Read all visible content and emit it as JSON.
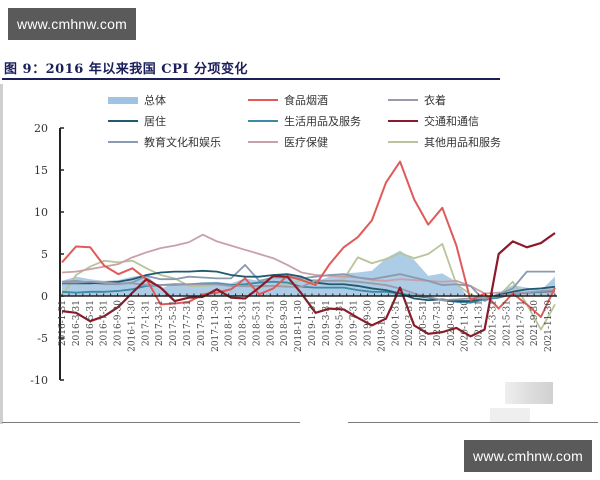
{
  "watermark": {
    "top": "www.cmhnw.com",
    "bottom": "www.cmhnw.com"
  },
  "figure": {
    "title": "图 9：2016 年以来我国 CPI 分项变化"
  },
  "legend": [
    {
      "label": "总体",
      "color": "#9fc3e0",
      "style": "area"
    },
    {
      "label": "食品烟酒",
      "color": "#e05a5a",
      "style": "line"
    },
    {
      "label": "衣着",
      "color": "#9a9aaa",
      "style": "line"
    },
    {
      "label": "居住",
      "color": "#1f5a6e",
      "style": "line"
    },
    {
      "label": "生活用品及服务",
      "color": "#3a8aa8",
      "style": "line"
    },
    {
      "label": "交通和通信",
      "color": "#8b1a2a",
      "style": "line"
    },
    {
      "label": "教育文化和娱乐",
      "color": "#8a9ab0",
      "style": "line"
    },
    {
      "label": "医疗保健",
      "color": "#c9a0a8",
      "style": "line"
    },
    {
      "label": "其他用品和服务",
      "color": "#b8c49a",
      "style": "line"
    }
  ],
  "chart_data": {
    "type": "line",
    "title": "2016 年以来我国 CPI 分项变化",
    "xlabel": "",
    "ylabel": "",
    "ylim": [
      -10,
      20
    ],
    "yticks": [
      20,
      15,
      10,
      5,
      0,
      -5,
      -10
    ],
    "grid": false,
    "legend_position": "top",
    "x_tick_labels": [
      "2016-1-31",
      "2016-3-31",
      "2016-5-31",
      "2016-7-31",
      "2016-9-30",
      "2016-11-30",
      "2017-1-31",
      "2017-3-31",
      "2017-5-31",
      "2017-7-31",
      "2017-9-30",
      "2017-11-30",
      "2018-1-31",
      "2018-3-31",
      "2018-5-31",
      "2018-7-31",
      "2018-9-30",
      "2018-11-30",
      "2019-1-31",
      "2019-3-31",
      "2019-5-31",
      "2019-7-31",
      "2019-9-30",
      "2019-11-30",
      "2020-1-31",
      "2020-3-31",
      "2020-5-31",
      "2020-7-31",
      "2020-9-30",
      "2020-11-30",
      "2021-1-31",
      "2021-3-31",
      "2021-5-31",
      "2021-7-31",
      "2021-9-30",
      "2021-11-30"
    ],
    "series": [
      {
        "name": "总体",
        "values": [
          1.8,
          2.3,
          2.0,
          1.8,
          1.9,
          2.3,
          2.5,
          0.9,
          1.5,
          1.4,
          1.6,
          1.7,
          1.5,
          2.1,
          1.8,
          2.1,
          2.5,
          2.2,
          1.7,
          2.3,
          2.7,
          2.8,
          3.0,
          4.5,
          5.4,
          4.3,
          2.4,
          2.7,
          1.7,
          -0.5,
          -0.3,
          0.4,
          1.3,
          1.0,
          0.7,
          2.3
        ]
      },
      {
        "name": "食品烟酒",
        "values": [
          4.0,
          5.9,
          5.8,
          3.6,
          2.6,
          3.3,
          2.0,
          -1.0,
          -0.9,
          -0.7,
          0.2,
          0.4,
          0.8,
          2.1,
          0.2,
          0.9,
          2.4,
          1.9,
          1.3,
          3.8,
          5.8,
          7.0,
          9.0,
          13.5,
          16.0,
          11.5,
          8.5,
          10.5,
          6.0,
          -0.5,
          0.3,
          -1.5,
          0.3,
          -1.0,
          -2.5,
          1.0
        ]
      },
      {
        "name": "衣着",
        "values": [
          1.6,
          1.6,
          1.7,
          1.6,
          1.5,
          1.5,
          1.3,
          1.3,
          1.3,
          1.4,
          1.4,
          1.4,
          1.2,
          1.2,
          1.2,
          1.2,
          1.1,
          1.1,
          1.8,
          1.8,
          1.8,
          1.7,
          1.5,
          1.3,
          0.9,
          0.3,
          -0.1,
          -0.5,
          -0.4,
          -0.3,
          -0.3,
          0.0,
          0.3,
          0.4,
          0.6,
          0.7
        ]
      },
      {
        "name": "居住",
        "values": [
          1.5,
          1.5,
          1.5,
          1.6,
          1.7,
          2.0,
          2.5,
          2.8,
          2.9,
          2.9,
          3.0,
          2.9,
          2.5,
          2.3,
          2.3,
          2.5,
          2.6,
          2.3,
          1.6,
          1.4,
          1.4,
          1.2,
          0.9,
          0.7,
          0.3,
          -0.3,
          -0.5,
          -0.4,
          -0.6,
          -0.6,
          -0.3,
          0.1,
          0.5,
          0.8,
          0.9,
          1.1
        ]
      },
      {
        "name": "生活用品及服务",
        "values": [
          0.5,
          0.4,
          0.5,
          0.5,
          0.6,
          0.8,
          1.2,
          1.3,
          1.4,
          1.4,
          1.5,
          1.5,
          1.3,
          1.4,
          1.6,
          1.7,
          1.6,
          1.1,
          1.0,
          1.0,
          1.0,
          0.7,
          0.5,
          0.5,
          0.3,
          0.0,
          -0.2,
          -0.5,
          -0.7,
          -0.8,
          -0.4,
          -0.2,
          0.2,
          0.4,
          0.5,
          0.6
        ]
      },
      {
        "name": "交通和通信",
        "values": [
          -1.8,
          -2.0,
          -3.0,
          -2.4,
          -1.3,
          0.4,
          2.0,
          1.0,
          -0.6,
          -0.2,
          -0.1,
          0.8,
          -0.2,
          -0.3,
          1.0,
          2.4,
          2.3,
          0.3,
          -2.0,
          -1.5,
          -1.6,
          -2.6,
          -3.5,
          -2.7,
          1.0,
          -3.5,
          -4.5,
          -4.3,
          -3.8,
          -4.8,
          -4.0,
          5.0,
          6.5,
          5.8,
          6.3,
          7.5
        ]
      },
      {
        "name": "教育文化和娱乐",
        "values": [
          1.7,
          1.8,
          1.6,
          1.4,
          1.4,
          1.6,
          2.4,
          2.0,
          2.0,
          2.3,
          2.2,
          2.1,
          2.1,
          3.7,
          1.8,
          2.2,
          2.2,
          2.1,
          2.3,
          2.5,
          2.6,
          2.2,
          2.0,
          2.3,
          2.6,
          2.2,
          1.8,
          1.3,
          1.4,
          1.2,
          -0.6,
          0.2,
          0.9,
          2.9,
          2.9,
          2.9
        ]
      },
      {
        "name": "医疗保健",
        "values": [
          2.8,
          2.9,
          3.2,
          3.5,
          3.8,
          4.6,
          5.2,
          5.7,
          6.0,
          6.4,
          7.3,
          6.5,
          6.0,
          5.5,
          5.0,
          4.5,
          3.7,
          2.8,
          2.5,
          2.4,
          2.3,
          2.2,
          1.9,
          1.8,
          2.0,
          1.9,
          1.8,
          1.7,
          1.8,
          1.2,
          0.3,
          0.4,
          0.3,
          0.3,
          0.4,
          0.5
        ]
      },
      {
        "name": "其他用品和服务",
        "values": [
          0.0,
          2.5,
          3.5,
          4.2,
          4.0,
          4.2,
          3.3,
          2.5,
          2.1,
          1.2,
          1.2,
          1.3,
          1.3,
          1.1,
          1.0,
          1.2,
          1.3,
          1.9,
          1.9,
          1.8,
          2.0,
          4.6,
          3.9,
          4.4,
          5.1,
          4.5,
          5.0,
          6.2,
          1.4,
          0.2,
          -0.5,
          0.0,
          1.7,
          -1.0,
          -4.0,
          -1.0
        ]
      }
    ]
  }
}
